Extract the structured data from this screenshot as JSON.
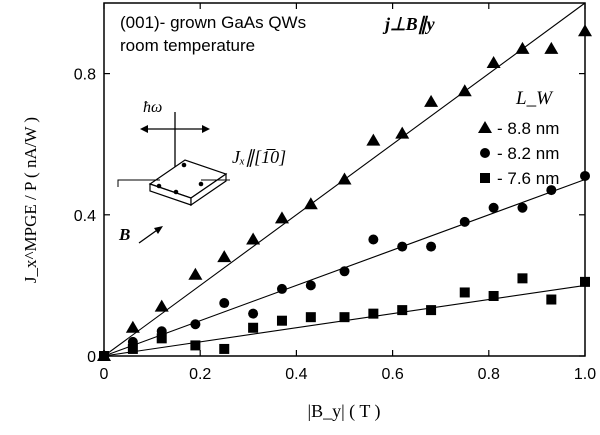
{
  "chart_data": {
    "type": "scatter",
    "title": "",
    "annotations": {
      "sample_line1": "(001)- grown GaAs QWs",
      "sample_line2": "room temperature",
      "geometry_label": "j⊥B∥y",
      "photon_label": "ħω",
      "current_label": "Jₓ∥[1̅0]",
      "field_label": "B"
    },
    "legend": {
      "title": "L_W",
      "placement": "right"
    },
    "xlabel": "|B_y| ( T )",
    "ylabel": "J_x^MPGE / P ( nA/W )",
    "xlim": [
      0,
      1.0
    ],
    "ylim": [
      0,
      1.0
    ],
    "xticks": [
      0,
      0.2,
      0.4,
      0.6,
      0.8,
      1.0
    ],
    "xtick_labels": [
      "0",
      "0.2",
      "0.4",
      "0.6",
      "0.8",
      "1.0"
    ],
    "yticks": [
      0,
      0.4,
      0.8
    ],
    "ytick_labels": [
      "0",
      "0.4",
      "0.8"
    ],
    "series": [
      {
        "name": "- 8.8 nm",
        "marker": "triangle",
        "fit_slope": 1.0,
        "x": [
          0.0,
          0.06,
          0.12,
          0.19,
          0.25,
          0.31,
          0.37,
          0.43,
          0.5,
          0.56,
          0.62,
          0.68,
          0.75,
          0.81,
          0.87,
          0.93,
          1.0
        ],
        "y": [
          0.0,
          0.08,
          0.14,
          0.23,
          0.28,
          0.33,
          0.39,
          0.43,
          0.5,
          0.61,
          0.63,
          0.72,
          0.75,
          0.83,
          0.87,
          0.87,
          0.92
        ]
      },
      {
        "name": "- 8.2 nm",
        "marker": "circle",
        "fit_slope": 0.5,
        "x": [
          0.0,
          0.06,
          0.12,
          0.19,
          0.25,
          0.31,
          0.37,
          0.43,
          0.5,
          0.56,
          0.62,
          0.68,
          0.75,
          0.81,
          0.87,
          0.93,
          1.0
        ],
        "y": [
          0.0,
          0.04,
          0.07,
          0.09,
          0.15,
          0.12,
          0.19,
          0.2,
          0.24,
          0.33,
          0.31,
          0.31,
          0.38,
          0.42,
          0.42,
          0.47,
          0.51
        ]
      },
      {
        "name": "- 7.6 nm",
        "marker": "square",
        "fit_slope": 0.2,
        "x": [
          0.0,
          0.06,
          0.12,
          0.19,
          0.25,
          0.31,
          0.37,
          0.43,
          0.5,
          0.56,
          0.62,
          0.68,
          0.75,
          0.81,
          0.87,
          0.93,
          1.0
        ],
        "y": [
          0.0,
          0.02,
          0.05,
          0.03,
          0.02,
          0.08,
          0.1,
          0.11,
          0.11,
          0.12,
          0.13,
          0.13,
          0.18,
          0.17,
          0.22,
          0.16,
          0.21
        ]
      }
    ]
  }
}
